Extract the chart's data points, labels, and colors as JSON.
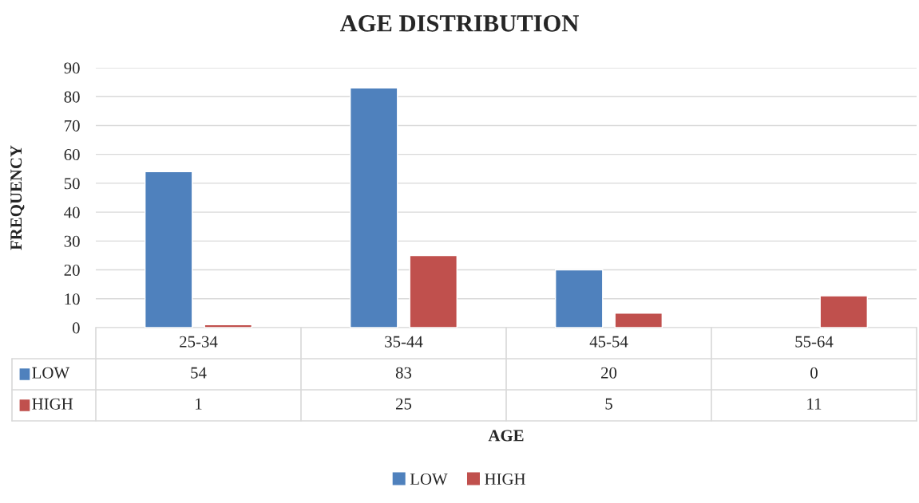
{
  "chart_data": {
    "type": "bar",
    "title": "AGE DISTRIBUTION",
    "xlabel": "AGE",
    "ylabel": "FREQUENCY",
    "categories": [
      "25-34",
      "35-44",
      "45-54",
      "55-64"
    ],
    "series": [
      {
        "name": "LOW",
        "color": "#4f81bd",
        "values": [
          54,
          83,
          20,
          0
        ]
      },
      {
        "name": "HIGH",
        "color": "#c0504d",
        "values": [
          1,
          25,
          5,
          11
        ]
      }
    ],
    "ylim": [
      0,
      90
    ],
    "yticks": [
      0,
      10,
      20,
      30,
      40,
      50,
      60,
      70,
      80,
      90
    ],
    "grid": "y",
    "legend": "bottom",
    "data_labels": true
  }
}
